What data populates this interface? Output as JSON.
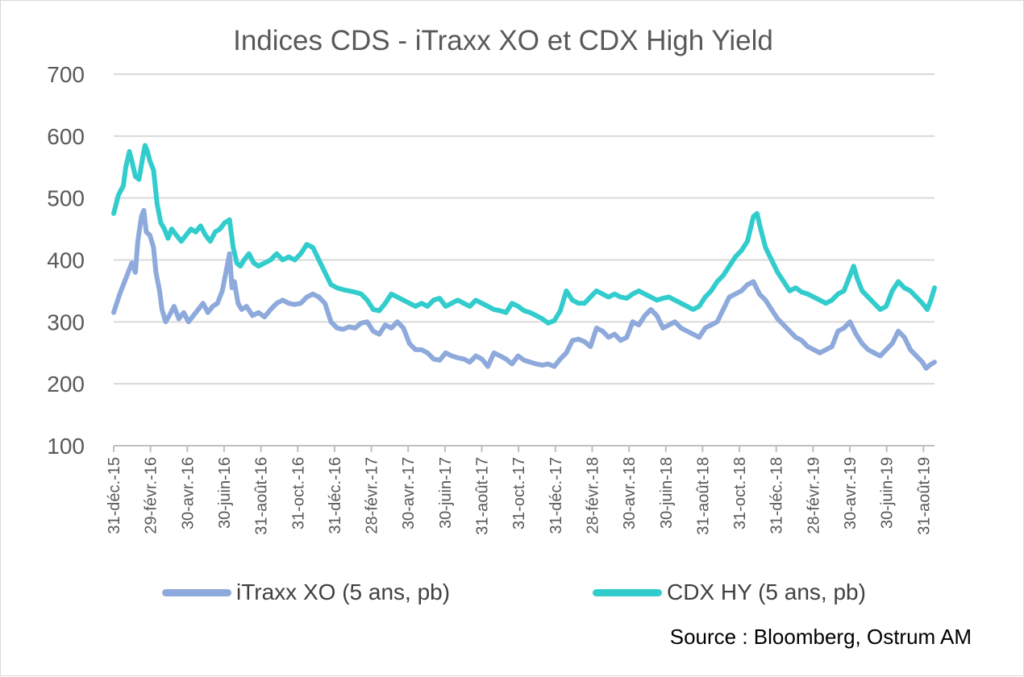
{
  "chart_data": {
    "type": "line",
    "title": "Indices CDS - iTraxx XO et CDX High Yield",
    "xlabel": "",
    "ylabel": "",
    "ylim": [
      100,
      700
    ],
    "yticks": [
      100,
      200,
      300,
      400,
      500,
      600,
      700
    ],
    "grid": true,
    "legend_position": "bottom",
    "x_tick_labels": [
      "31-déc.-15",
      "29-févr.-16",
      "30-avr.-16",
      "30-juin-16",
      "31-août-16",
      "31-oct.-16",
      "31-déc.-16",
      "28-févr.-17",
      "30-avr.-17",
      "30-juin-17",
      "31-août-17",
      "31-oct.-17",
      "31-déc.-17",
      "28-févr.-18",
      "30-avr.-18",
      "30-juin-18",
      "31-août-18",
      "31-oct.-18",
      "31-déc.-18",
      "28-févr.-19",
      "30-avr.-19",
      "30-juin-19",
      "31-août-19"
    ],
    "x_extent_months": [
      0,
      44.6
    ],
    "series": [
      {
        "name": "iTraxx XO (5 ans, pb)",
        "color": "#8EA9DB",
        "points": [
          [
            0,
            315
          ],
          [
            0.5,
            345
          ],
          [
            0.9,
            365
          ],
          [
            1.2,
            380
          ],
          [
            1.5,
            395
          ],
          [
            1.8,
            380
          ],
          [
            2.0,
            430
          ],
          [
            2.3,
            470
          ],
          [
            2.5,
            480
          ],
          [
            2.7,
            445
          ],
          [
            3.0,
            440
          ],
          [
            3.3,
            420
          ],
          [
            3.5,
            380
          ],
          [
            3.8,
            350
          ],
          [
            4.0,
            320
          ],
          [
            4.3,
            300
          ],
          [
            4.6,
            310
          ],
          [
            5.0,
            325
          ],
          [
            5.4,
            305
          ],
          [
            5.8,
            315
          ],
          [
            6.2,
            300
          ],
          [
            6.6,
            310
          ],
          [
            7.0,
            320
          ],
          [
            7.4,
            330
          ],
          [
            7.8,
            315
          ],
          [
            8.2,
            325
          ],
          [
            8.6,
            330
          ],
          [
            9.0,
            350
          ],
          [
            9.3,
            380
          ],
          [
            9.6,
            410
          ],
          [
            9.8,
            355
          ],
          [
            10.0,
            365
          ],
          [
            10.3,
            330
          ],
          [
            10.6,
            320
          ],
          [
            11.0,
            325
          ],
          [
            11.5,
            310
          ],
          [
            12.0,
            315
          ],
          [
            12.5,
            308
          ],
          [
            13.0,
            320
          ],
          [
            13.5,
            330
          ],
          [
            14.0,
            335
          ],
          [
            14.5,
            330
          ],
          [
            15.0,
            328
          ],
          [
            15.5,
            330
          ],
          [
            16.0,
            340
          ],
          [
            16.5,
            345
          ],
          [
            17.0,
            340
          ],
          [
            17.5,
            330
          ],
          [
            18.0,
            300
          ],
          [
            18.5,
            290
          ],
          [
            19.0,
            288
          ],
          [
            19.5,
            292
          ],
          [
            20.0,
            290
          ],
          [
            20.5,
            298
          ],
          [
            21.0,
            300
          ],
          [
            21.5,
            285
          ],
          [
            22.0,
            280
          ],
          [
            22.5,
            295
          ],
          [
            23.0,
            290
          ],
          [
            23.5,
            300
          ],
          [
            24.0,
            290
          ],
          [
            24.5,
            265
          ],
          [
            25.0,
            255
          ],
          [
            25.5,
            255
          ],
          [
            26.0,
            250
          ],
          [
            26.5,
            240
          ],
          [
            27.0,
            238
          ],
          [
            27.5,
            250
          ],
          [
            28.0,
            245
          ],
          [
            28.5,
            242
          ],
          [
            29.0,
            240
          ],
          [
            29.5,
            235
          ],
          [
            30.0,
            245
          ],
          [
            30.5,
            240
          ],
          [
            31.0,
            228
          ],
          [
            31.5,
            250
          ],
          [
            32.0,
            245
          ],
          [
            32.5,
            240
          ],
          [
            33.0,
            232
          ],
          [
            33.5,
            245
          ],
          [
            34.0,
            238
          ],
          [
            34.5,
            235
          ],
          [
            35.0,
            232
          ],
          [
            35.5,
            230
          ],
          [
            36.0,
            232
          ],
          [
            36.5,
            228
          ],
          [
            37.0,
            240
          ],
          [
            37.5,
            250
          ],
          [
            38.0,
            270
          ],
          [
            38.5,
            272
          ],
          [
            39.0,
            268
          ],
          [
            39.5,
            260
          ],
          [
            40.0,
            290
          ],
          [
            40.5,
            285
          ],
          [
            41.0,
            275
          ],
          [
            41.5,
            280
          ],
          [
            42.0,
            270
          ],
          [
            42.5,
            275
          ],
          [
            43.0,
            300
          ],
          [
            43.5,
            295
          ],
          [
            44.0,
            310
          ],
          [
            44.5,
            320
          ],
          [
            45.0,
            310
          ],
          [
            45.5,
            290
          ],
          [
            46.0,
            295
          ],
          [
            46.5,
            300
          ],
          [
            47.0,
            290
          ],
          [
            47.5,
            285
          ],
          [
            48.0,
            280
          ],
          [
            48.5,
            275
          ],
          [
            49.0,
            290
          ],
          [
            49.5,
            295
          ],
          [
            50.0,
            300
          ],
          [
            50.5,
            320
          ],
          [
            51.0,
            340
          ],
          [
            51.5,
            345
          ],
          [
            52.0,
            350
          ],
          [
            52.5,
            360
          ],
          [
            53.0,
            365
          ],
          [
            53.5,
            345
          ],
          [
            54.0,
            335
          ],
          [
            54.5,
            320
          ],
          [
            55.0,
            305
          ],
          [
            55.5,
            295
          ],
          [
            56.0,
            285
          ],
          [
            56.5,
            275
          ],
          [
            57.0,
            270
          ],
          [
            57.5,
            260
          ],
          [
            58.0,
            255
          ],
          [
            58.5,
            250
          ],
          [
            59.0,
            255
          ],
          [
            59.5,
            260
          ],
          [
            60.0,
            285
          ],
          [
            60.5,
            290
          ],
          [
            61.0,
            300
          ],
          [
            61.5,
            280
          ],
          [
            62.0,
            265
          ],
          [
            62.5,
            255
          ],
          [
            63.0,
            250
          ],
          [
            63.5,
            245
          ],
          [
            64.0,
            255
          ],
          [
            64.5,
            265
          ],
          [
            65.0,
            285
          ],
          [
            65.5,
            275
          ],
          [
            66.0,
            255
          ],
          [
            66.5,
            245
          ],
          [
            67.0,
            235
          ],
          [
            67.3,
            225
          ],
          [
            67.6,
            230
          ],
          [
            68.0,
            235
          ]
        ]
      },
      {
        "name": "CDX HY (5 ans, pb)",
        "color": "#33CCCC",
        "points": [
          [
            0,
            475
          ],
          [
            0.4,
            505
          ],
          [
            0.8,
            520
          ],
          [
            1.0,
            550
          ],
          [
            1.3,
            575
          ],
          [
            1.5,
            560
          ],
          [
            1.8,
            535
          ],
          [
            2.1,
            530
          ],
          [
            2.4,
            565
          ],
          [
            2.6,
            585
          ],
          [
            2.8,
            575
          ],
          [
            3.0,
            560
          ],
          [
            3.3,
            545
          ],
          [
            3.6,
            490
          ],
          [
            3.9,
            460
          ],
          [
            4.2,
            450
          ],
          [
            4.5,
            435
          ],
          [
            4.8,
            450
          ],
          [
            5.2,
            440
          ],
          [
            5.6,
            430
          ],
          [
            6.0,
            440
          ],
          [
            6.4,
            450
          ],
          [
            6.8,
            445
          ],
          [
            7.2,
            455
          ],
          [
            7.6,
            440
          ],
          [
            8.0,
            430
          ],
          [
            8.4,
            445
          ],
          [
            8.8,
            450
          ],
          [
            9.2,
            460
          ],
          [
            9.6,
            465
          ],
          [
            9.9,
            420
          ],
          [
            10.2,
            395
          ],
          [
            10.5,
            390
          ],
          [
            10.8,
            400
          ],
          [
            11.2,
            410
          ],
          [
            11.6,
            395
          ],
          [
            12.0,
            390
          ],
          [
            12.5,
            395
          ],
          [
            13.0,
            400
          ],
          [
            13.5,
            410
          ],
          [
            14.0,
            400
          ],
          [
            14.5,
            405
          ],
          [
            15.0,
            400
          ],
          [
            15.5,
            410
          ],
          [
            16.0,
            425
          ],
          [
            16.5,
            420
          ],
          [
            17.0,
            400
          ],
          [
            17.5,
            380
          ],
          [
            18.0,
            360
          ],
          [
            18.5,
            355
          ],
          [
            19.0,
            352
          ],
          [
            19.5,
            350
          ],
          [
            20.0,
            348
          ],
          [
            20.5,
            345
          ],
          [
            21.0,
            335
          ],
          [
            21.5,
            320
          ],
          [
            22.0,
            318
          ],
          [
            22.5,
            330
          ],
          [
            23.0,
            345
          ],
          [
            23.5,
            340
          ],
          [
            24.0,
            335
          ],
          [
            24.5,
            330
          ],
          [
            25.0,
            325
          ],
          [
            25.5,
            330
          ],
          [
            26.0,
            325
          ],
          [
            26.5,
            335
          ],
          [
            27.0,
            338
          ],
          [
            27.5,
            325
          ],
          [
            28.0,
            330
          ],
          [
            28.5,
            335
          ],
          [
            29.0,
            330
          ],
          [
            29.5,
            325
          ],
          [
            30.0,
            335
          ],
          [
            30.5,
            330
          ],
          [
            31.0,
            325
          ],
          [
            31.5,
            320
          ],
          [
            32.0,
            318
          ],
          [
            32.5,
            315
          ],
          [
            33.0,
            330
          ],
          [
            33.5,
            325
          ],
          [
            34.0,
            318
          ],
          [
            34.5,
            315
          ],
          [
            35.0,
            310
          ],
          [
            35.5,
            305
          ],
          [
            36.0,
            298
          ],
          [
            36.5,
            302
          ],
          [
            37.0,
            318
          ],
          [
            37.5,
            350
          ],
          [
            38.0,
            335
          ],
          [
            38.5,
            330
          ],
          [
            39.0,
            330
          ],
          [
            39.5,
            340
          ],
          [
            40.0,
            350
          ],
          [
            40.5,
            345
          ],
          [
            41.0,
            340
          ],
          [
            41.5,
            345
          ],
          [
            42.0,
            340
          ],
          [
            42.5,
            338
          ],
          [
            43.0,
            345
          ],
          [
            43.5,
            350
          ],
          [
            44.0,
            345
          ],
          [
            44.5,
            340
          ],
          [
            45.0,
            335
          ],
          [
            45.5,
            338
          ],
          [
            46.0,
            340
          ],
          [
            46.5,
            335
          ],
          [
            47.0,
            330
          ],
          [
            47.5,
            325
          ],
          [
            48.0,
            320
          ],
          [
            48.5,
            325
          ],
          [
            49.0,
            340
          ],
          [
            49.5,
            350
          ],
          [
            50.0,
            365
          ],
          [
            50.5,
            375
          ],
          [
            51.0,
            390
          ],
          [
            51.5,
            405
          ],
          [
            52.0,
            415
          ],
          [
            52.5,
            430
          ],
          [
            53.0,
            470
          ],
          [
            53.3,
            475
          ],
          [
            53.6,
            450
          ],
          [
            54.0,
            420
          ],
          [
            54.5,
            400
          ],
          [
            55.0,
            380
          ],
          [
            55.5,
            365
          ],
          [
            56.0,
            350
          ],
          [
            56.5,
            355
          ],
          [
            57.0,
            348
          ],
          [
            57.5,
            345
          ],
          [
            58.0,
            340
          ],
          [
            58.5,
            335
          ],
          [
            59.0,
            330
          ],
          [
            59.5,
            335
          ],
          [
            60.0,
            345
          ],
          [
            60.5,
            350
          ],
          [
            61.0,
            375
          ],
          [
            61.3,
            390
          ],
          [
            61.6,
            370
          ],
          [
            62.0,
            350
          ],
          [
            62.5,
            340
          ],
          [
            63.0,
            330
          ],
          [
            63.5,
            320
          ],
          [
            64.0,
            325
          ],
          [
            64.5,
            350
          ],
          [
            65.0,
            365
          ],
          [
            65.5,
            355
          ],
          [
            66.0,
            350
          ],
          [
            66.5,
            340
          ],
          [
            67.0,
            330
          ],
          [
            67.4,
            320
          ],
          [
            67.7,
            335
          ],
          [
            68.0,
            355
          ]
        ]
      }
    ]
  },
  "legend": [
    {
      "label": "iTraxx XO (5 ans, pb)",
      "color": "#8EA9DB"
    },
    {
      "label": "CDX HY (5 ans, pb)",
      "color": "#33CCCC"
    }
  ],
  "source": "Source : Bloomberg, Ostrum AM"
}
